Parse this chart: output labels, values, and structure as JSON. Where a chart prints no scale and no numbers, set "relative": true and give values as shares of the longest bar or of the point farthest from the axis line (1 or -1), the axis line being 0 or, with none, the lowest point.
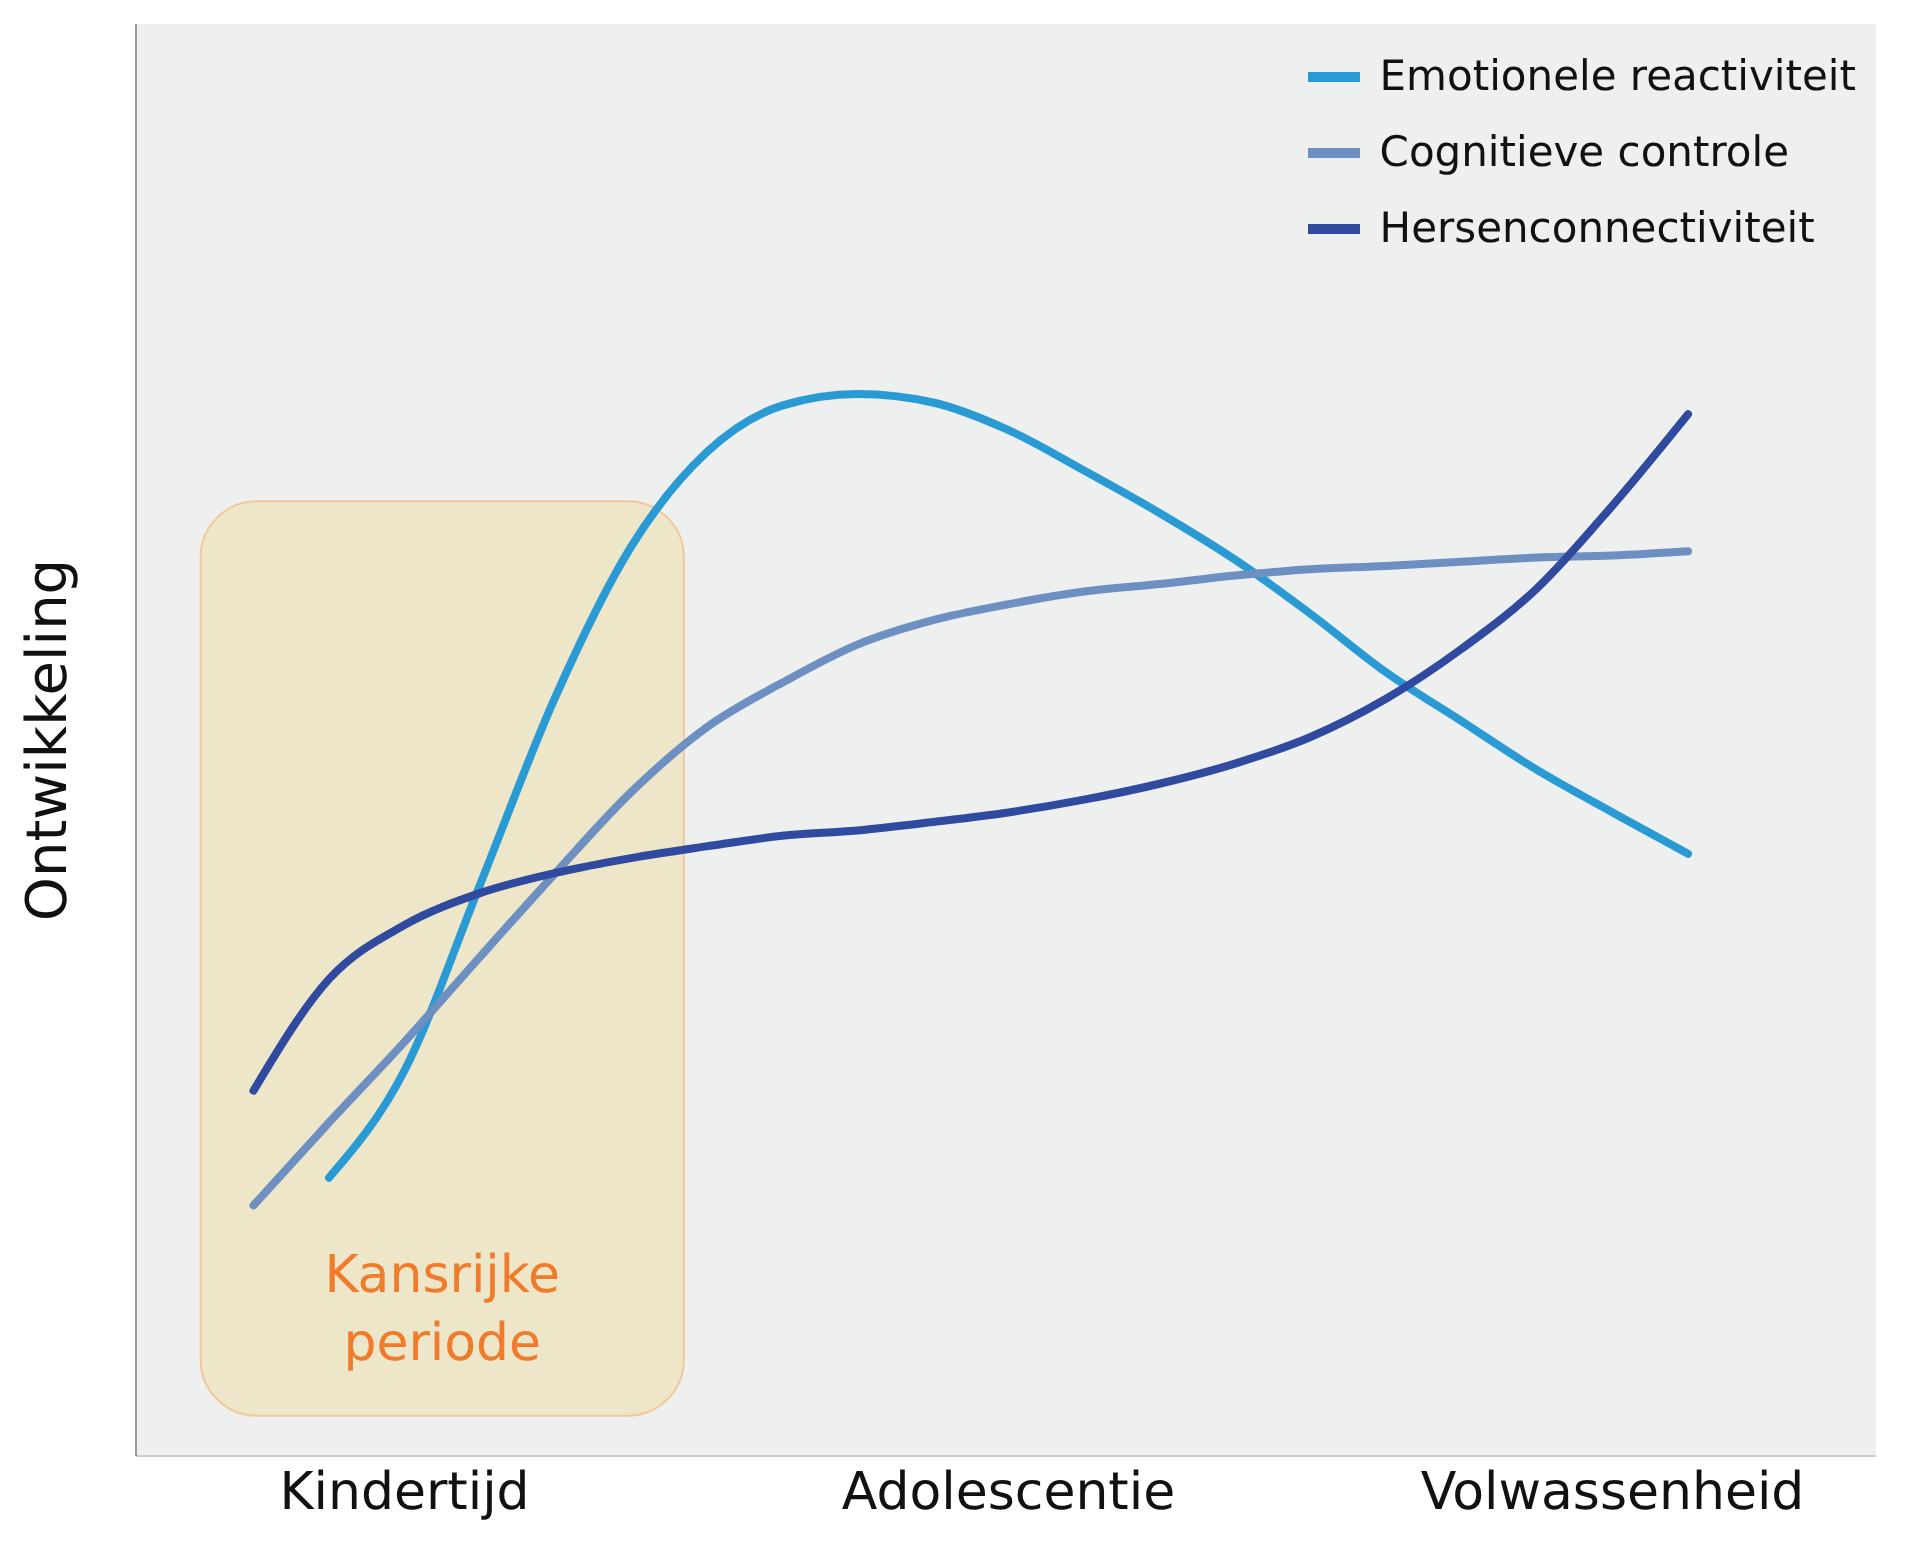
{
  "chart_data": {
    "type": "line",
    "relative": true,
    "ylabel": "Ontwikkeling",
    "categories": [
      null,
      null,
      null,
      "Kindertijd",
      null,
      null,
      null,
      null,
      null,
      null,
      null,
      "Adolescentie",
      null,
      null,
      null,
      null,
      null,
      null,
      null,
      "Volwassenheid",
      null
    ],
    "tick_labels": "x",
    "grid": false,
    "legend": "top right",
    "marker": "none",
    "line_style": "solid",
    "annotations": [
      "Kansrijke periode"
    ],
    "series": [
      {
        "name": "Emotionele reactiviteit",
        "color": "#2a9ad4",
        "values": [
          null,
          null,
          0.262,
          0.363,
          0.538,
          0.715,
          0.856,
          0.945,
          0.989,
          1,
          0.992,
          0.966,
          0.928,
          0.888,
          0.844,
          0.793,
          0.738,
          0.692,
          0.646,
          0.606,
          0.567
        ]
      },
      {
        "name": "Cognitieve controle",
        "color": "#6d8fc2",
        "values": [
          null,
          0.236,
          0.314,
          0.39,
          0.47,
          0.549,
          0.625,
          0.686,
          0.728,
          0.764,
          0.787,
          0.802,
          0.814,
          0.821,
          0.829,
          0.835,
          0.838,
          0.842,
          0.846,
          0.848,
          0.852
        ]
      },
      {
        "name": "Hersenconnectiviteit",
        "color": "#2f4a9e",
        "values": [
          null,
          0.344,
          0.449,
          0.5,
          0.53,
          0.549,
          0.563,
          0.574,
          0.584,
          0.589,
          0.597,
          0.606,
          0.618,
          0.633,
          0.652,
          0.677,
          0.713,
          0.76,
          0.817,
          0.895,
          0.981
        ]
      }
    ]
  }
}
